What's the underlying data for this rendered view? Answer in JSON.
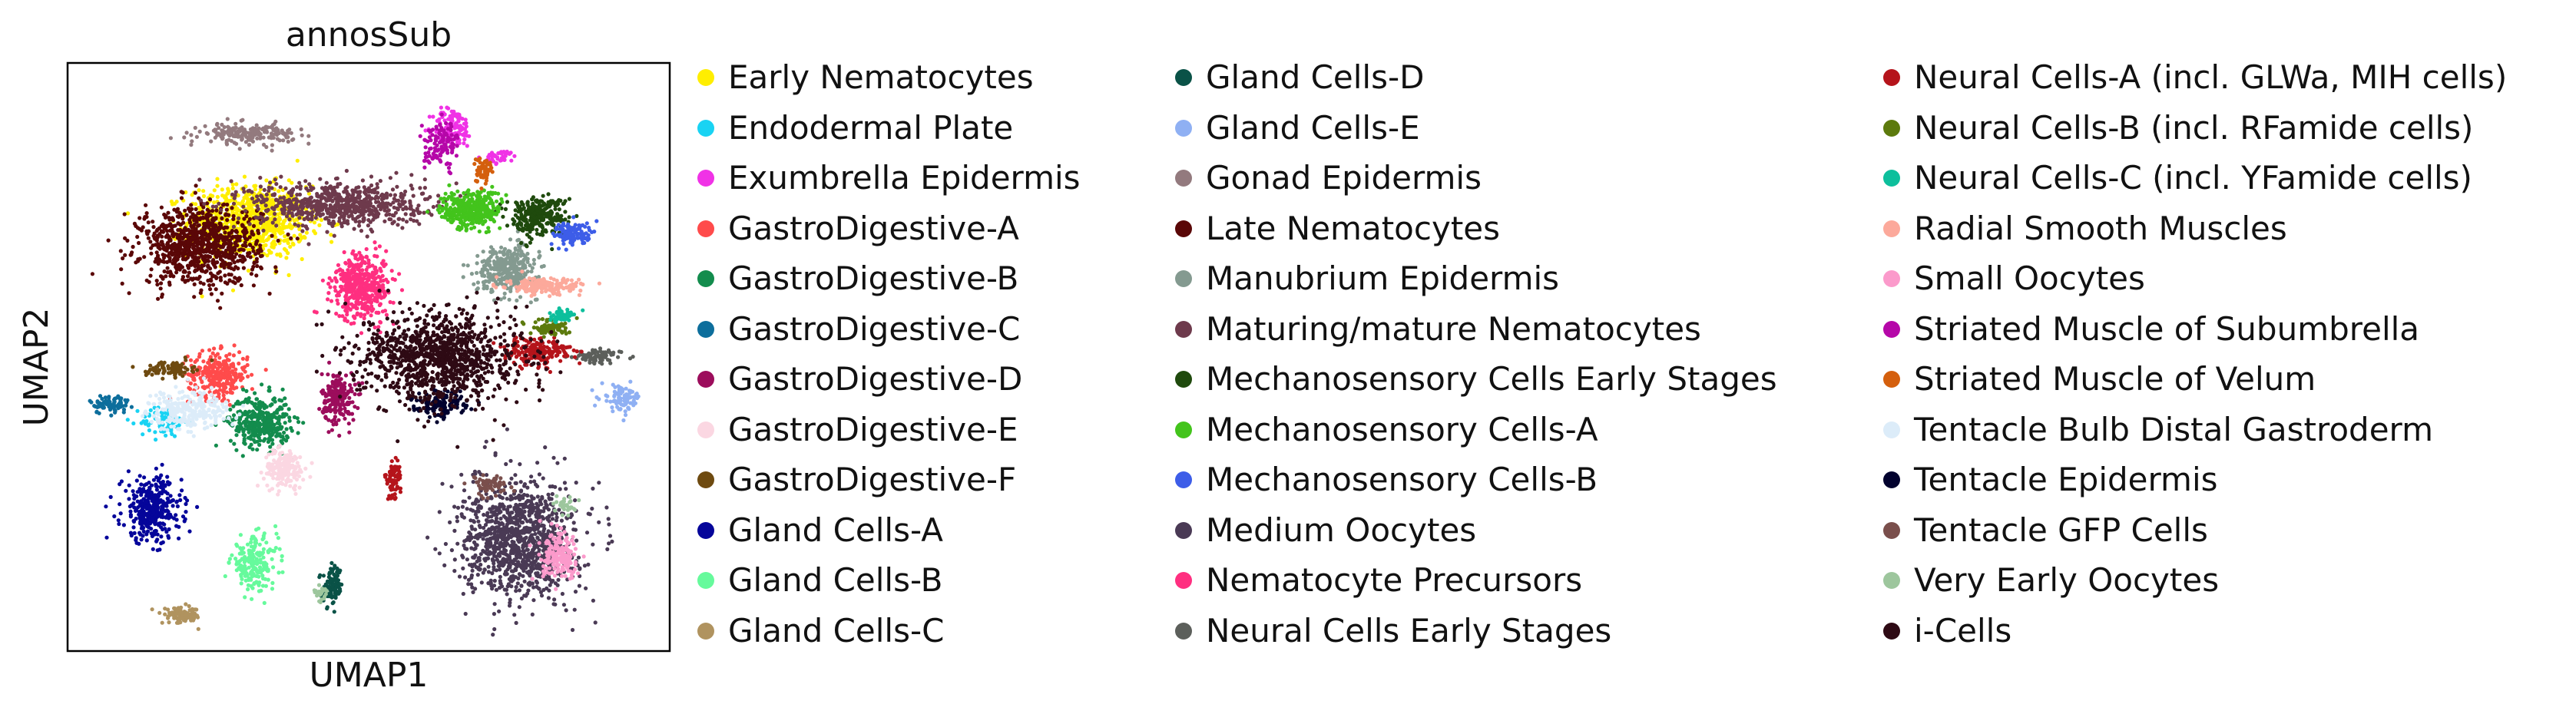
{
  "chart_data": {
    "type": "scatter",
    "title": "annosSub",
    "xlabel": "UMAP1",
    "ylabel": "UMAP2",
    "grid": false,
    "legend_position": "right",
    "series": [
      {
        "name": "Early Nematocytes",
        "color": "#ffee00",
        "clusters": [
          {
            "cx": 3.0,
            "cy": 7.3,
            "rx": 0.9,
            "ry": 0.55,
            "n": 900
          }
        ]
      },
      {
        "name": "Endodermal Plate",
        "color": "#19d3f3",
        "clusters": [
          {
            "cx": 1.6,
            "cy": 3.9,
            "rx": 0.35,
            "ry": 0.25,
            "n": 80
          }
        ]
      },
      {
        "name": "Exumbrella Epidermis",
        "color": "#f032e6",
        "clusters": [
          {
            "cx": 6.4,
            "cy": 8.9,
            "rx": 0.3,
            "ry": 0.3,
            "n": 120
          },
          {
            "cx": 7.2,
            "cy": 8.4,
            "rx": 0.25,
            "ry": 0.1,
            "n": 40
          }
        ]
      },
      {
        "name": "GastroDigestive-A",
        "color": "#ff4b4b",
        "clusters": [
          {
            "cx": 2.5,
            "cy": 4.7,
            "rx": 0.45,
            "ry": 0.35,
            "n": 300
          }
        ]
      },
      {
        "name": "GastroDigestive-B",
        "color": "#138c4d",
        "clusters": [
          {
            "cx": 3.2,
            "cy": 3.9,
            "rx": 0.45,
            "ry": 0.4,
            "n": 350
          }
        ]
      },
      {
        "name": "GastroDigestive-C",
        "color": "#0d6e9c",
        "clusters": [
          {
            "cx": 0.7,
            "cy": 4.2,
            "rx": 0.3,
            "ry": 0.15,
            "n": 80
          }
        ]
      },
      {
        "name": "GastroDigestive-D",
        "color": "#9c0d5c",
        "clusters": [
          {
            "cx": 4.5,
            "cy": 4.3,
            "rx": 0.25,
            "ry": 0.4,
            "n": 200
          }
        ]
      },
      {
        "name": "GastroDigestive-E",
        "color": "#fbd7e2",
        "clusters": [
          {
            "cx": 3.6,
            "cy": 3.1,
            "rx": 0.3,
            "ry": 0.3,
            "n": 180
          }
        ]
      },
      {
        "name": "GastroDigestive-F",
        "color": "#6e4a10",
        "clusters": [
          {
            "cx": 1.7,
            "cy": 4.8,
            "rx": 0.35,
            "ry": 0.12,
            "n": 90
          }
        ]
      },
      {
        "name": "Gland Cells-A",
        "color": "#05059a",
        "clusters": [
          {
            "cx": 1.4,
            "cy": 2.4,
            "rx": 0.45,
            "ry": 0.5,
            "n": 350
          }
        ]
      },
      {
        "name": "Gland Cells-B",
        "color": "#66fa9c",
        "clusters": [
          {
            "cx": 3.1,
            "cy": 1.5,
            "rx": 0.35,
            "ry": 0.4,
            "n": 200
          }
        ]
      },
      {
        "name": "Gland Cells-C",
        "color": "#b0935f",
        "clusters": [
          {
            "cx": 1.9,
            "cy": 0.6,
            "rx": 0.3,
            "ry": 0.12,
            "n": 100
          }
        ]
      },
      {
        "name": "Gland Cells-D",
        "color": "#0a5247",
        "clusters": [
          {
            "cx": 4.4,
            "cy": 1.1,
            "rx": 0.15,
            "ry": 0.3,
            "n": 100
          }
        ]
      },
      {
        "name": "Gland Cells-E",
        "color": "#8fb0f3",
        "clusters": [
          {
            "cx": 9.2,
            "cy": 4.3,
            "rx": 0.3,
            "ry": 0.2,
            "n": 90
          }
        ]
      },
      {
        "name": "Gonad Epidermis",
        "color": "#937a7e",
        "clusters": [
          {
            "cx": 3.0,
            "cy": 8.8,
            "rx": 0.7,
            "ry": 0.15,
            "n": 200
          }
        ]
      },
      {
        "name": "Late Nematocytes",
        "color": "#5a0707",
        "clusters": [
          {
            "cx": 2.2,
            "cy": 6.9,
            "rx": 0.9,
            "ry": 0.6,
            "n": 900
          }
        ]
      },
      {
        "name": "Manubrium Epidermis",
        "color": "#849a90",
        "clusters": [
          {
            "cx": 7.3,
            "cy": 6.5,
            "rx": 0.45,
            "ry": 0.35,
            "n": 350
          }
        ]
      },
      {
        "name": "Maturing/mature Nematocytes",
        "color": "#6e3a4c",
        "clusters": [
          {
            "cx": 4.5,
            "cy": 7.6,
            "rx": 1.3,
            "ry": 0.35,
            "n": 700
          }
        ]
      },
      {
        "name": "Mechanosensory Cells Early Stages",
        "color": "#1f4a0d",
        "clusters": [
          {
            "cx": 7.8,
            "cy": 7.4,
            "rx": 0.45,
            "ry": 0.3,
            "n": 300
          }
        ]
      },
      {
        "name": "Mechanosensory Cells-A",
        "color": "#43c41c",
        "clusters": [
          {
            "cx": 6.7,
            "cy": 7.5,
            "rx": 0.45,
            "ry": 0.3,
            "n": 350
          }
        ]
      },
      {
        "name": "Mechanosensory Cells-B",
        "color": "#3d5de8",
        "clusters": [
          {
            "cx": 8.4,
            "cy": 7.1,
            "rx": 0.3,
            "ry": 0.18,
            "n": 120
          }
        ]
      },
      {
        "name": "Medium Oocytes",
        "color": "#4a3a55",
        "clusters": [
          {
            "cx": 7.5,
            "cy": 1.9,
            "rx": 0.85,
            "ry": 0.9,
            "n": 1100
          }
        ]
      },
      {
        "name": "Nematocyte Precursors",
        "color": "#ff2f80",
        "clusters": [
          {
            "cx": 4.9,
            "cy": 6.2,
            "rx": 0.45,
            "ry": 0.5,
            "n": 450
          }
        ]
      },
      {
        "name": "Neural Cells Early Stages",
        "color": "#5c5f5b",
        "clusters": [
          {
            "cx": 8.8,
            "cy": 5.0,
            "rx": 0.35,
            "ry": 0.12,
            "n": 80
          }
        ]
      },
      {
        "name": "Neural Cells-A (incl. GLWa, MIH cells)",
        "color": "#b5141b",
        "clusters": [
          {
            "cx": 7.8,
            "cy": 5.1,
            "rx": 0.5,
            "ry": 0.22,
            "n": 200
          },
          {
            "cx": 5.4,
            "cy": 2.9,
            "rx": 0.12,
            "ry": 0.3,
            "n": 80
          }
        ]
      },
      {
        "name": "Neural Cells-B (incl. RFamide cells)",
        "color": "#5c7a0d",
        "clusters": [
          {
            "cx": 8.0,
            "cy": 5.5,
            "rx": 0.3,
            "ry": 0.12,
            "n": 80
          }
        ]
      },
      {
        "name": "Neural Cells-C (incl. YFamide cells)",
        "color": "#0dbf9c",
        "clusters": [
          {
            "cx": 8.2,
            "cy": 5.7,
            "rx": 0.2,
            "ry": 0.1,
            "n": 50
          }
        ]
      },
      {
        "name": "Radial Smooth Muscles",
        "color": "#fca99b",
        "clusters": [
          {
            "cx": 7.9,
            "cy": 6.2,
            "rx": 0.55,
            "ry": 0.12,
            "n": 180
          }
        ]
      },
      {
        "name": "Small Oocytes",
        "color": "#fb9acb",
        "clusters": [
          {
            "cx": 8.2,
            "cy": 1.6,
            "rx": 0.3,
            "ry": 0.35,
            "n": 180
          }
        ]
      },
      {
        "name": "Striated Muscle of Subumbrella",
        "color": "#b507a8",
        "clusters": [
          {
            "cx": 6.2,
            "cy": 8.6,
            "rx": 0.25,
            "ry": 0.35,
            "n": 120
          }
        ]
      },
      {
        "name": "Striated Muscle of Velum",
        "color": "#d45f0d",
        "clusters": [
          {
            "cx": 6.9,
            "cy": 8.2,
            "rx": 0.15,
            "ry": 0.2,
            "n": 60
          }
        ]
      },
      {
        "name": "Tentacle Bulb Distal Gastroderm",
        "color": "#dcecf9",
        "clusters": [
          {
            "cx": 2.0,
            "cy": 4.1,
            "rx": 0.6,
            "ry": 0.3,
            "n": 250
          }
        ]
      },
      {
        "name": "Tentacle Epidermis",
        "color": "#02022e",
        "clusters": [
          {
            "cx": 6.2,
            "cy": 4.2,
            "rx": 0.4,
            "ry": 0.2,
            "n": 150
          }
        ]
      },
      {
        "name": "Tentacle GFP Cells",
        "color": "#7a4f4c",
        "clusters": [
          {
            "cx": 7.0,
            "cy": 2.8,
            "rx": 0.3,
            "ry": 0.15,
            "n": 60
          }
        ]
      },
      {
        "name": "Very Early Oocytes",
        "color": "#9dc69d",
        "clusters": [
          {
            "cx": 4.2,
            "cy": 1.0,
            "rx": 0.1,
            "ry": 0.1,
            "n": 30
          },
          {
            "cx": 8.3,
            "cy": 2.5,
            "rx": 0.15,
            "ry": 0.15,
            "n": 30
          }
        ]
      },
      {
        "name": "i-Cells",
        "color": "#2e0a14",
        "clusters": [
          {
            "cx": 6.2,
            "cy": 5.0,
            "rx": 1.2,
            "ry": 0.7,
            "n": 1100
          }
        ]
      }
    ]
  }
}
